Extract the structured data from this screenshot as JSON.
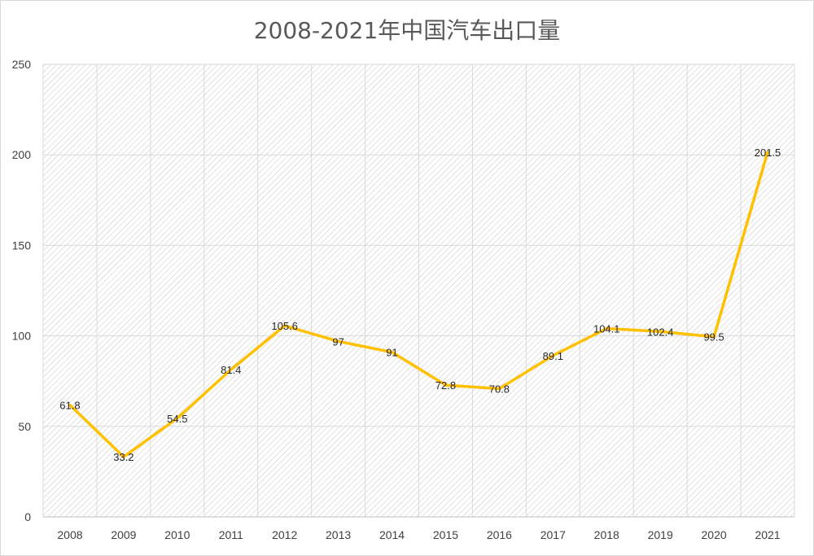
{
  "chart_data": {
    "type": "line",
    "title": "2008-2021年中国汽车出口量",
    "categories": [
      "2008",
      "2009",
      "2010",
      "2011",
      "2012",
      "2013",
      "2014",
      "2015",
      "2016",
      "2017",
      "2018",
      "2019",
      "2020",
      "2021"
    ],
    "series": [
      {
        "values": [
          61.8,
          33.2,
          54.5,
          81.4,
          105.6,
          97,
          91,
          72.8,
          70.8,
          89.1,
          104.1,
          102.4,
          99.5,
          201.5
        ],
        "labels": [
          "61.8",
          "33.2",
          "54.5",
          "81.4",
          "105.6",
          "97",
          "91",
          "72.8",
          "70.8",
          "89.1",
          "104.1",
          "102.4",
          "99.5",
          "201.5"
        ],
        "color": "#FFC000"
      }
    ],
    "xlabel": "",
    "ylabel": "",
    "ylim": [
      0,
      250
    ],
    "yticks": [
      "0",
      "50",
      "100",
      "150",
      "200",
      "250"
    ],
    "grid": true,
    "legend": "none"
  }
}
